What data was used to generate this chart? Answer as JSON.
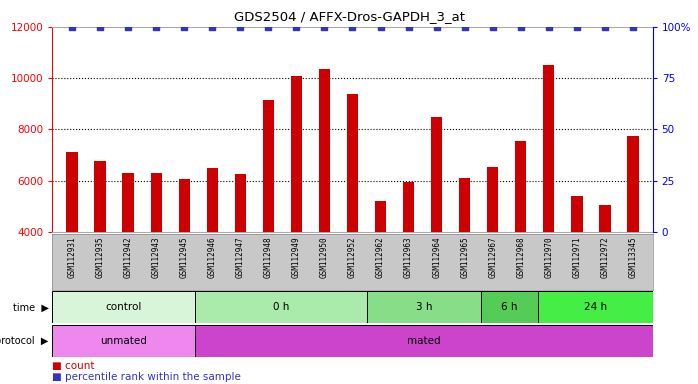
{
  "title": "GDS2504 / AFFX-Dros-GAPDH_3_at",
  "samples": [
    "GSM112931",
    "GSM112935",
    "GSM112942",
    "GSM112943",
    "GSM112945",
    "GSM112946",
    "GSM112947",
    "GSM112948",
    "GSM112949",
    "GSM112950",
    "GSM112952",
    "GSM112962",
    "GSM112963",
    "GSM112964",
    "GSM112965",
    "GSM112967",
    "GSM112968",
    "GSM112970",
    "GSM112971",
    "GSM112972",
    "GSM113345"
  ],
  "counts": [
    7100,
    6750,
    6300,
    6300,
    6050,
    6500,
    6250,
    9150,
    10100,
    10350,
    9400,
    5200,
    5950,
    8500,
    6100,
    6550,
    7550,
    10500,
    5400,
    5050,
    7750
  ],
  "percentile_ranks": [
    100,
    100,
    100,
    100,
    100,
    100,
    100,
    100,
    100,
    100,
    100,
    100,
    100,
    100,
    100,
    100,
    100,
    100,
    100,
    100,
    100
  ],
  "bar_color": "#cc0000",
  "dot_color": "#3333cc",
  "ylim_left": [
    4000,
    12000
  ],
  "ylim_right": [
    0,
    100
  ],
  "yticks_left": [
    4000,
    6000,
    8000,
    10000,
    12000
  ],
  "yticks_right": [
    0,
    25,
    50,
    75,
    100
  ],
  "dotted_line_values": [
    6000,
    8000,
    10000
  ],
  "time_groups": [
    {
      "label": "control",
      "start": 0,
      "end": 5,
      "color": "#d9f5d9"
    },
    {
      "label": "0 h",
      "start": 5,
      "end": 11,
      "color": "#aaeaaa"
    },
    {
      "label": "3 h",
      "start": 11,
      "end": 15,
      "color": "#88dd88"
    },
    {
      "label": "6 h",
      "start": 15,
      "end": 17,
      "color": "#55cc55"
    },
    {
      "label": "24 h",
      "start": 17,
      "end": 21,
      "color": "#44ee44"
    }
  ],
  "protocol_groups": [
    {
      "label": "unmated",
      "start": 0,
      "end": 5,
      "color": "#ee88ee"
    },
    {
      "label": "mated",
      "start": 5,
      "end": 21,
      "color": "#cc44cc"
    }
  ],
  "bg_color": "#ffffff",
  "label_bg_color": "#c8c8c8",
  "bar_width": 0.4,
  "dot_size": 20
}
